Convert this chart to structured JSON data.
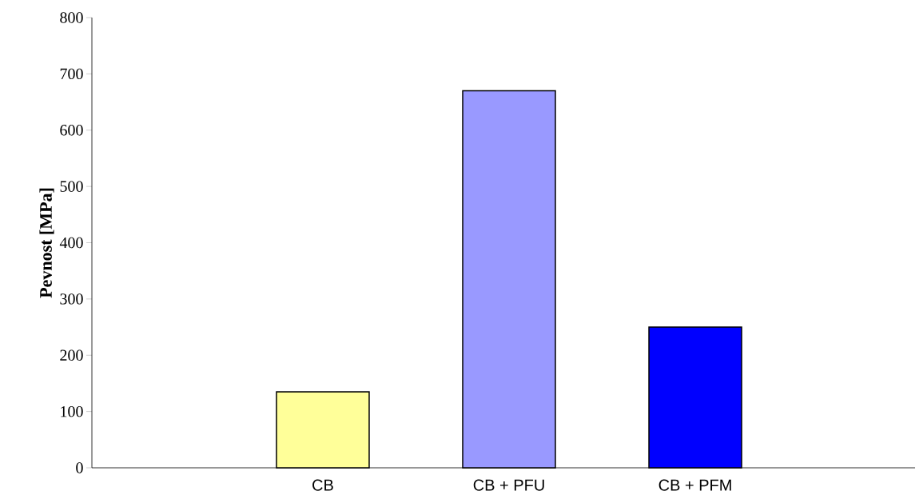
{
  "chart_data": {
    "type": "bar",
    "ylabel": "Pevnost [MPa]",
    "categories": [
      "CB",
      "CB + PFU",
      "CB + PFM"
    ],
    "values": [
      135,
      670,
      250
    ],
    "colors": [
      "#ffff99",
      "#9999ff",
      "#0000ff"
    ],
    "ylim": [
      0,
      800
    ],
    "yticks": [
      0,
      100,
      200,
      300,
      400,
      500,
      600,
      700,
      800
    ],
    "grid": false
  }
}
